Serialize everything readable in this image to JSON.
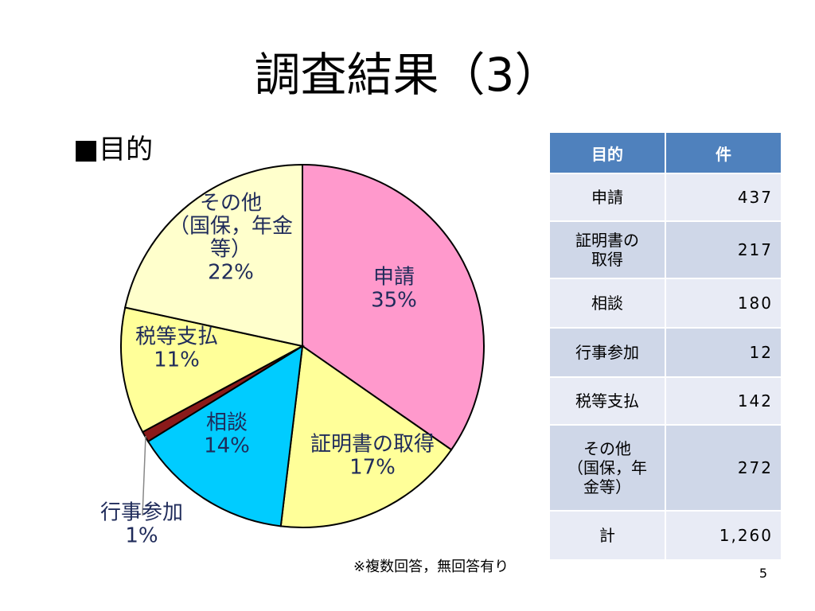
{
  "title": "調査結果（3）",
  "section_label": "■目的",
  "chart_data": {
    "type": "pie",
    "title": "",
    "slices": [
      {
        "name": "申請",
        "percent_label": "35%",
        "value": 437,
        "color": "#ff99cc"
      },
      {
        "name": "証明書の取得",
        "percent_label": "17%",
        "value": 217,
        "color": "#ffff99"
      },
      {
        "name": "相談",
        "percent_label": "14%",
        "value": 180,
        "color": "#00ccff"
      },
      {
        "name": "行事参加",
        "percent_label": "1%",
        "value": 12,
        "color": "#8b1a1a"
      },
      {
        "name": "税等支払",
        "percent_label": "11%",
        "value": 142,
        "color": "#ffff99"
      },
      {
        "name_lines": [
          "その他",
          "（国保，年金",
          "等）"
        ],
        "percent_label": "22%",
        "value": 272,
        "color": "#ffffcc"
      }
    ],
    "label_color": "#1f2b5a"
  },
  "table": {
    "headers": [
      "目的",
      "件"
    ],
    "rows": [
      {
        "lines": [
          "申請"
        ],
        "value": "437"
      },
      {
        "lines": [
          "証明書の",
          "取得"
        ],
        "value": "217"
      },
      {
        "lines": [
          "相談"
        ],
        "value": "180"
      },
      {
        "lines": [
          "行事参加"
        ],
        "value": "12"
      },
      {
        "lines": [
          "税等支払"
        ],
        "value": "142"
      },
      {
        "lines": [
          "その他",
          "（国保，年",
          "金等）"
        ],
        "value": "272"
      },
      {
        "lines": [
          "計"
        ],
        "value": "1,260"
      }
    ],
    "header_color": "#4f81bd"
  },
  "footnote": "※複数回答，無回答有り",
  "page_number": "5"
}
